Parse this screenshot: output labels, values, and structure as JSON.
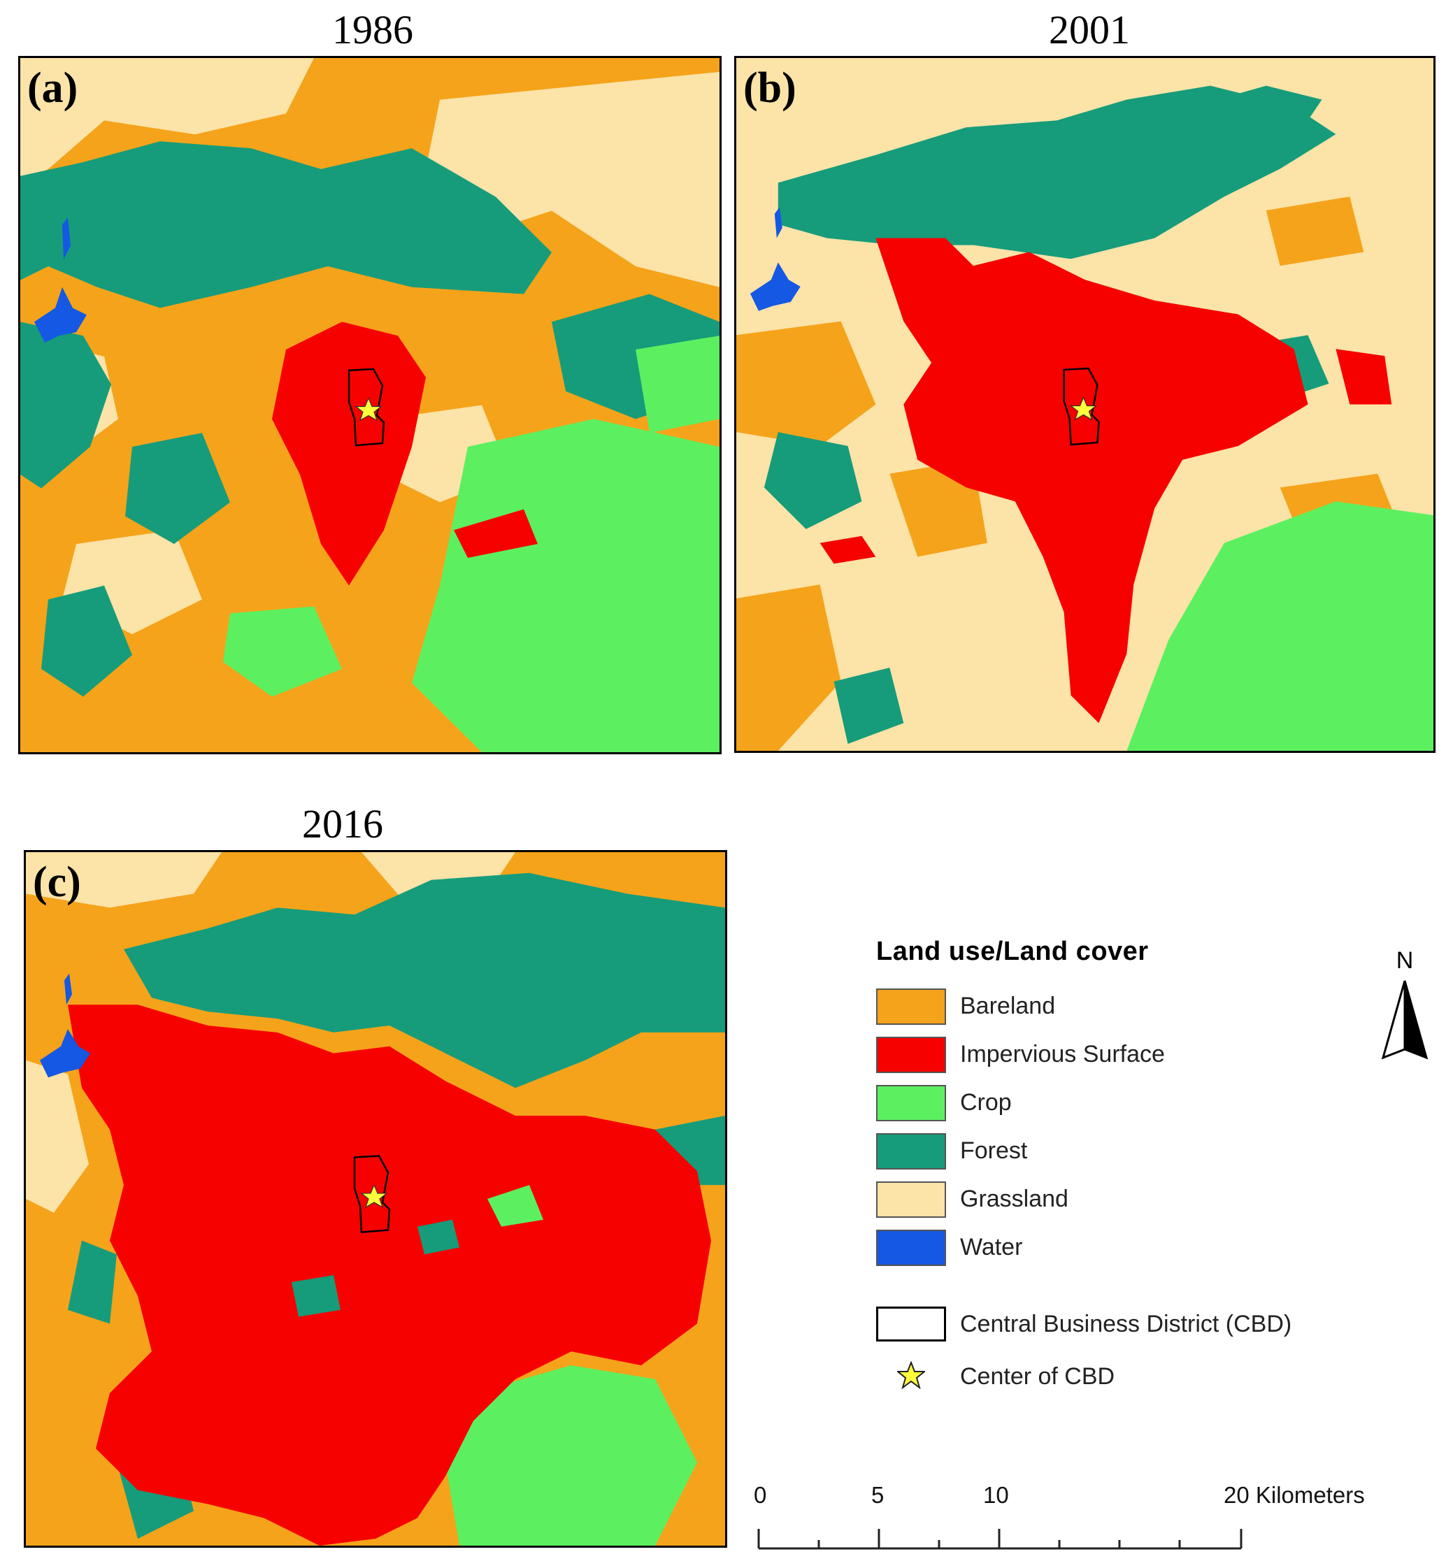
{
  "panels": [
    {
      "year": "1986",
      "letter": "(a)"
    },
    {
      "year": "2001",
      "letter": "(b)"
    },
    {
      "year": "2016",
      "letter": "(c)"
    }
  ],
  "legend": {
    "title": "Land use/Land cover",
    "items": [
      {
        "label": "Bareland",
        "color": "#F5A31A"
      },
      {
        "label": "Impervious Surface",
        "color": "#F70000"
      },
      {
        "label": "Crop",
        "color": "#5CF060"
      },
      {
        "label": "Forest",
        "color": "#169C7A"
      },
      {
        "label": "Grassland",
        "color": "#FCE3A8"
      },
      {
        "label": "Water",
        "color": "#1558E3"
      }
    ],
    "cbd_label": "Central Business District (CBD)",
    "center_label": "Center of CBD"
  },
  "north_arrow": {
    "label": "N"
  },
  "scale_bar": {
    "ticks": [
      "0",
      "5",
      "10",
      "20 Kilometers"
    ]
  }
}
